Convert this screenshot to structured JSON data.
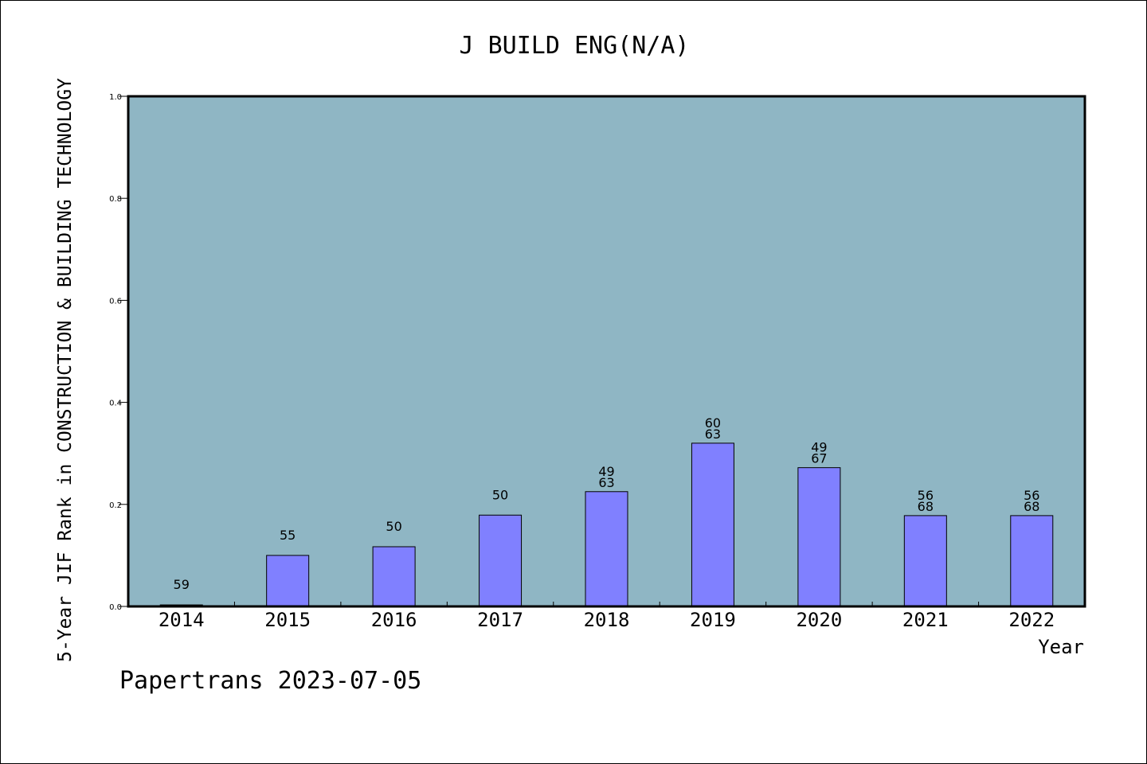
{
  "chart_data": {
    "type": "bar",
    "title": "J BUILD ENG(N/A)",
    "xlabel": "Year",
    "ylabel": "5-Year JIF Rank in CONSTRUCTION & BUILDING TECHNOLOGY",
    "ylim": [
      0,
      1.0
    ],
    "yticks": [
      "0.0",
      "0.2",
      "0.4",
      "0.6",
      "0.8",
      "1.0"
    ],
    "grid": false,
    "categories": [
      "2014",
      "2015",
      "2016",
      "2017",
      "2018",
      "2019",
      "2020",
      "2021",
      "2022"
    ],
    "values": [
      0.003,
      0.1,
      0.117,
      0.179,
      0.225,
      0.32,
      0.272,
      0.178,
      0.178
    ],
    "labels": [
      [
        "59"
      ],
      [
        "55"
      ],
      [
        "50"
      ],
      [
        "50"
      ],
      [
        "49",
        "63"
      ],
      [
        "60",
        "63"
      ],
      [
        "49",
        "67"
      ],
      [
        "56",
        "68"
      ],
      [
        "56",
        "68"
      ]
    ],
    "colors": {
      "plot_background": "#8fb6c4",
      "bar_fill": "#8080ff",
      "axis": "#000000"
    }
  },
  "footer": "Papertrans 2023-07-05"
}
